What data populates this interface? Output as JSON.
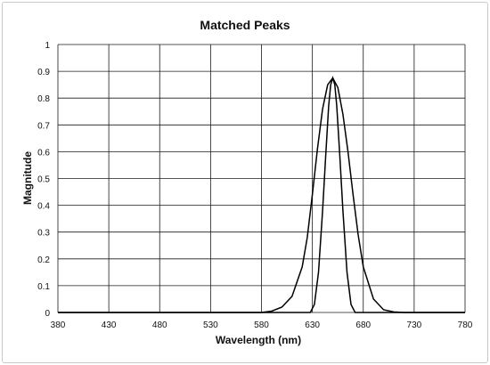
{
  "chart_data": {
    "type": "line",
    "title": "Matched Peaks",
    "xlabel": "Wavelength (nm)",
    "ylabel": "Magnitude",
    "xlim": [
      380,
      780
    ],
    "ylim": [
      0,
      1
    ],
    "x_ticks": [
      380,
      430,
      480,
      530,
      580,
      630,
      680,
      730,
      780
    ],
    "y_ticks": [
      0,
      0.1,
      0.2,
      0.3,
      0.4,
      0.5,
      0.6,
      0.7,
      0.8,
      0.9,
      1
    ],
    "y_tick_labels": [
      "0",
      "0.1",
      "0.2",
      "0.3",
      "0.4",
      "0.5",
      "0.6",
      "0.7",
      "0.8",
      "0.9",
      "1"
    ],
    "grid": true,
    "legend": "none",
    "series": [
      {
        "color": "#000000",
        "x": [
          380,
          580,
          590,
          600,
          610,
          620,
          625,
          630,
          635,
          640,
          645,
          650,
          655,
          660,
          665,
          670,
          675,
          680,
          690,
          700,
          710,
          720,
          780
        ],
        "y": [
          0,
          0,
          0.005,
          0.02,
          0.06,
          0.17,
          0.28,
          0.44,
          0.61,
          0.76,
          0.85,
          0.875,
          0.84,
          0.74,
          0.6,
          0.44,
          0.29,
          0.17,
          0.05,
          0.01,
          0.002,
          0,
          0
        ]
      },
      {
        "color": "#000000",
        "x": [
          380,
          628,
          632,
          636,
          640,
          643,
          646,
          648,
          650,
          652,
          654,
          657,
          660,
          664,
          668,
          672,
          780
        ],
        "y": [
          0,
          0,
          0.03,
          0.15,
          0.38,
          0.58,
          0.77,
          0.85,
          0.875,
          0.85,
          0.77,
          0.58,
          0.38,
          0.15,
          0.03,
          0,
          0
        ]
      }
    ]
  }
}
